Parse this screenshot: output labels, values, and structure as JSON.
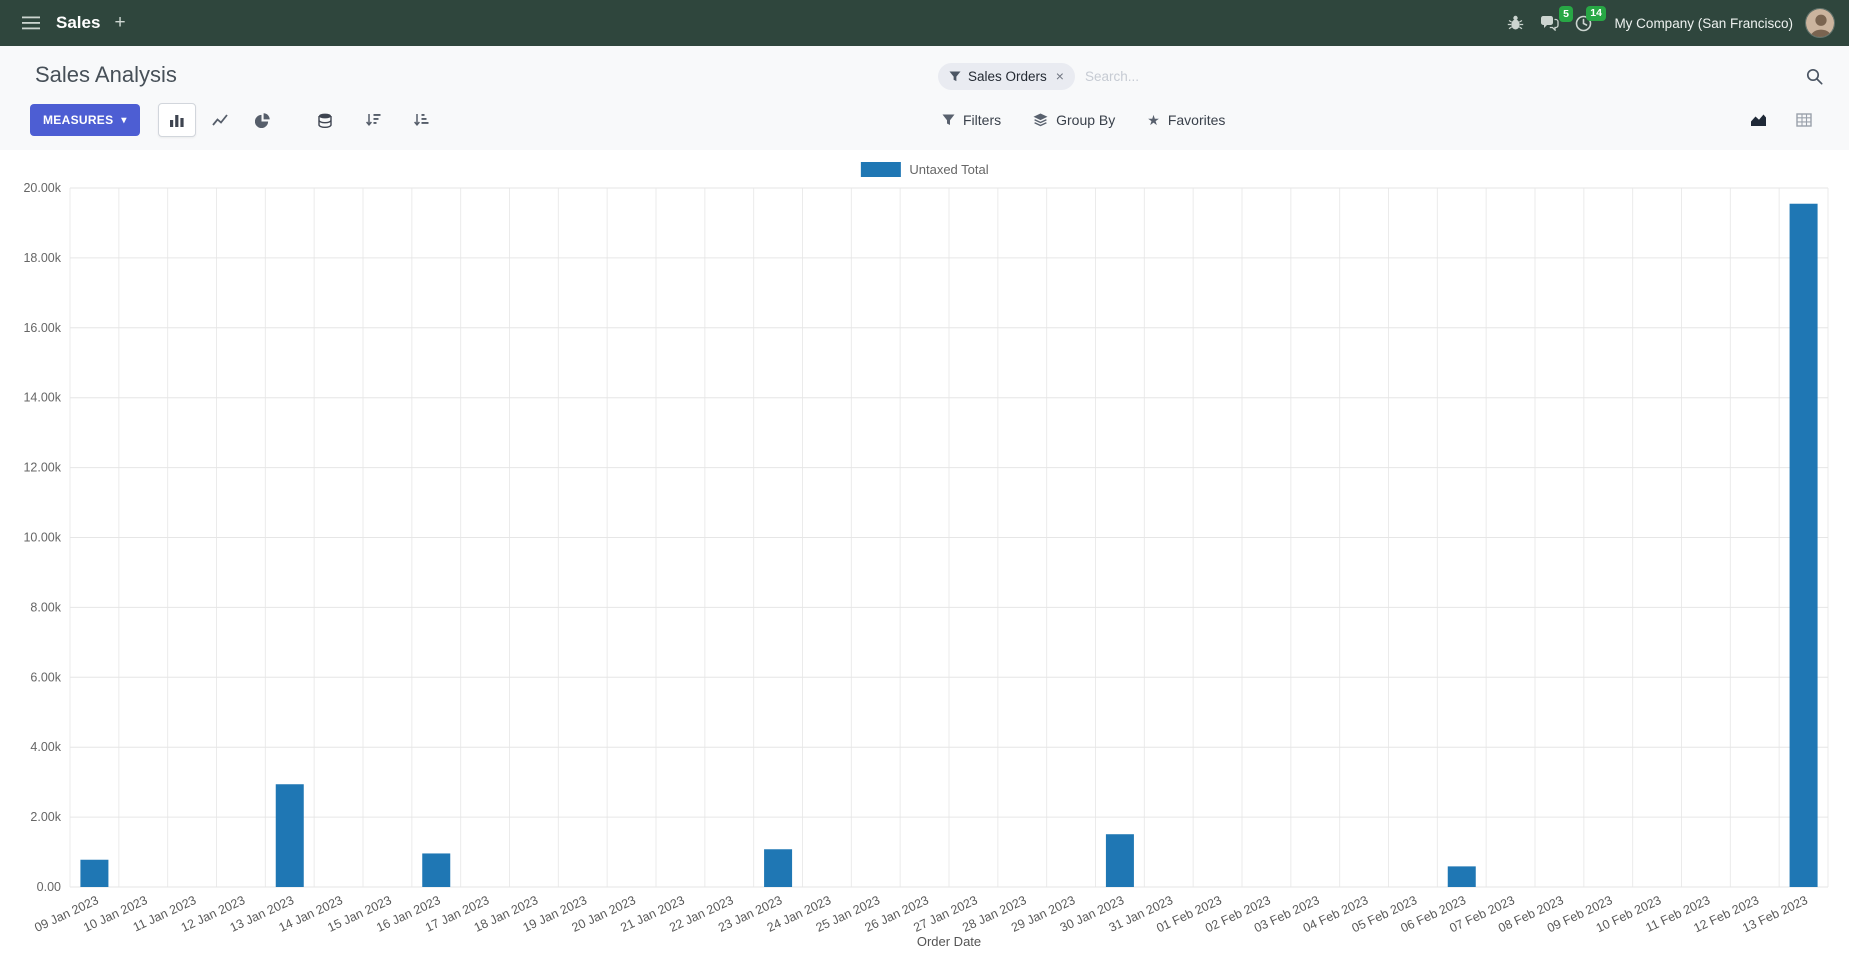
{
  "icons": {
    "caret_down": "▾",
    "star": "★",
    "close": "×",
    "plus": "+"
  },
  "theme": {
    "navbar_bg": "#2f463d",
    "badge_green": "#28a745",
    "accent": "#4d5ed3"
  },
  "navbar": {
    "app_name": "Sales",
    "company_name": "My Company (San Francisco)",
    "messages_badge": "5",
    "activities_badge": "14"
  },
  "control_panel": {
    "title": "Sales Analysis",
    "search": {
      "facet_label": "Sales Orders",
      "placeholder": "Search..."
    },
    "buttons": {
      "measures": "MEASURES",
      "filters": "Filters",
      "group_by": "Group By",
      "favorites": "Favorites"
    }
  },
  "chart_data": {
    "type": "bar",
    "title": "",
    "xlabel": "Order Date",
    "ylabel": "",
    "ylim": [
      0,
      20000
    ],
    "ytick_step": 2000,
    "ytick_labels": [
      "0.00",
      "2.00k",
      "4.00k",
      "6.00k",
      "8.00k",
      "10.00k",
      "12.00k",
      "14.00k",
      "16.00k",
      "18.00k",
      "20.00k"
    ],
    "grid": true,
    "legend_position": "top",
    "categories": [
      "09 Jan 2023",
      "10 Jan 2023",
      "11 Jan 2023",
      "12 Jan 2023",
      "13 Jan 2023",
      "14 Jan 2023",
      "15 Jan 2023",
      "16 Jan 2023",
      "17 Jan 2023",
      "18 Jan 2023",
      "19 Jan 2023",
      "20 Jan 2023",
      "21 Jan 2023",
      "22 Jan 2023",
      "23 Jan 2023",
      "24 Jan 2023",
      "25 Jan 2023",
      "26 Jan 2023",
      "27 Jan 2023",
      "28 Jan 2023",
      "29 Jan 2023",
      "30 Jan 2023",
      "31 Jan 2023",
      "01 Feb 2023",
      "02 Feb 2023",
      "03 Feb 2023",
      "04 Feb 2023",
      "05 Feb 2023",
      "06 Feb 2023",
      "07 Feb 2023",
      "08 Feb 2023",
      "09 Feb 2023",
      "10 Feb 2023",
      "11 Feb 2023",
      "12 Feb 2023",
      "13 Feb 2023"
    ],
    "series": [
      {
        "name": "Untaxed Total",
        "color": "#1f77b4",
        "values": [
          780,
          0,
          0,
          0,
          2940,
          0,
          0,
          960,
          0,
          0,
          0,
          0,
          0,
          0,
          1080,
          0,
          0,
          0,
          0,
          0,
          0,
          1510,
          0,
          0,
          0,
          0,
          0,
          0,
          590,
          0,
          0,
          0,
          0,
          0,
          0,
          19550
        ]
      }
    ]
  }
}
